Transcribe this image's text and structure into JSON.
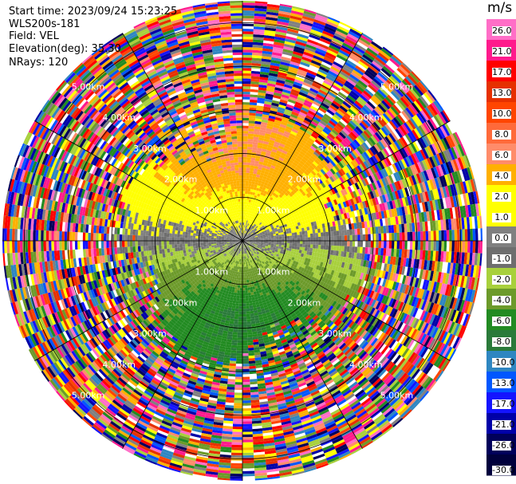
{
  "header": {
    "start_time": "Start time: 2023/09/24 15:23:25",
    "instrument": "WLS200s-181",
    "field": "Field: VEL",
    "elevation": "Elevation(deg): 35.30",
    "nrays": "NRays: 120"
  },
  "chart_data": {
    "type": "heatmap",
    "projection": "polar-ppi",
    "field": "VEL",
    "units": "m/s",
    "n_rays": 120,
    "elevation_deg": 35.3,
    "range_ring_labels": [
      "1.00km",
      "2.00km",
      "3.00km",
      "4.00km",
      "5.00km"
    ],
    "range_ring_values_km": [
      1,
      2,
      3,
      4,
      5
    ],
    "max_range_km": 5.5,
    "radial_spokes_deg": [
      0,
      30,
      60,
      90,
      120,
      150,
      180,
      210,
      240,
      270,
      300,
      330
    ],
    "colorbar": {
      "label": "m/s",
      "vmin": -30.0,
      "vmax": 30.0,
      "tick_labels": [
        "26.0",
        "21.0",
        "17.0",
        "13.0",
        "10.0",
        "8.0",
        "6.0",
        "4.0",
        "2.0",
        "1.0",
        "0.0",
        "-1.0",
        "-2.0",
        "-4.0",
        "-6.0",
        "-8.0",
        "-10.0",
        "-13.0",
        "-17.0",
        "-21.0",
        "-26.0",
        "-30.0"
      ],
      "colors": [
        "#ff6ec7",
        "#ff1a8c",
        "#ff0000",
        "#e63000",
        "#ff4500",
        "#ff6a3a",
        "#ff8c6a",
        "#ffb000",
        "#ffff00",
        "#ffff00",
        "#808080",
        "#6e6e6e",
        "#a8d03c",
        "#6c9a2a",
        "#228b22",
        "#2a7a3a",
        "#2e86c1",
        "#0057ff",
        "#1414ff",
        "#0000a8",
        "#00005a",
        "#00003c"
      ]
    },
    "pattern": {
      "description_note": "",
      "inner_radius_km": 0.05,
      "valid_radius_km": 2.5,
      "transition_radius_km": 3.1,
      "approaching_sector_deg": [
        180,
        360
      ],
      "receding_sector_deg": [
        0,
        180
      ]
    }
  }
}
